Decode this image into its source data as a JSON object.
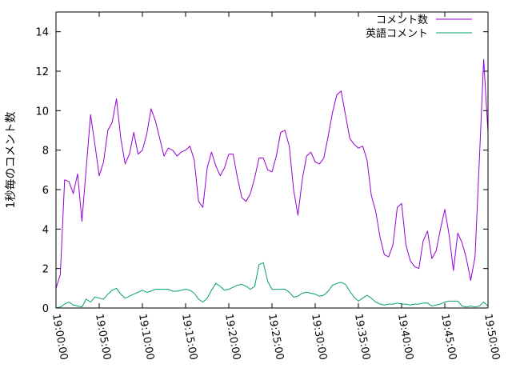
{
  "chart_data": {
    "type": "line",
    "title": "",
    "xlabel": "",
    "ylabel": "1秒毎のコメント数",
    "ylim": [
      0,
      15
    ],
    "yticks": [
      0,
      2,
      4,
      6,
      8,
      10,
      12,
      14
    ],
    "xticks": [
      "19:00:00",
      "19:05:00",
      "19:10:00",
      "19:15:00",
      "19:20:00",
      "19:25:00",
      "19:30:00",
      "19:35:00",
      "19:40:00",
      "19:45:00",
      "19:50:00"
    ],
    "xlim": [
      "19:00:00",
      "19:50:00"
    ],
    "grid": false,
    "legend_position": "top-right",
    "series": [
      {
        "name": "コメント数",
        "color": "#9400d3",
        "points": [
          [
            "19:00:00",
            1.0
          ],
          [
            "19:00:30",
            1.7
          ],
          [
            "19:01:00",
            6.5
          ],
          [
            "19:01:30",
            6.4
          ],
          [
            "19:02:00",
            5.8
          ],
          [
            "19:02:30",
            6.8
          ],
          [
            "19:03:00",
            4.4
          ],
          [
            "19:03:30",
            7.1
          ],
          [
            "19:04:00",
            9.8
          ],
          [
            "19:04:30",
            8.3
          ],
          [
            "19:05:00",
            6.7
          ],
          [
            "19:05:30",
            7.4
          ],
          [
            "19:06:00",
            9.0
          ],
          [
            "19:06:30",
            9.4
          ],
          [
            "19:07:00",
            10.6
          ],
          [
            "19:07:30",
            8.6
          ],
          [
            "19:08:00",
            7.3
          ],
          [
            "19:08:30",
            7.8
          ],
          [
            "19:09:00",
            8.9
          ],
          [
            "19:09:30",
            7.8
          ],
          [
            "19:10:00",
            8.0
          ],
          [
            "19:10:30",
            8.8
          ],
          [
            "19:11:00",
            10.1
          ],
          [
            "19:11:30",
            9.5
          ],
          [
            "19:12:00",
            8.6
          ],
          [
            "19:12:30",
            7.7
          ],
          [
            "19:13:00",
            8.1
          ],
          [
            "19:13:30",
            8.0
          ],
          [
            "19:14:00",
            7.7
          ],
          [
            "19:14:30",
            7.9
          ],
          [
            "19:15:00",
            8.0
          ],
          [
            "19:15:30",
            8.2
          ],
          [
            "19:16:00",
            7.5
          ],
          [
            "19:16:30",
            5.4
          ],
          [
            "19:17:00",
            5.1
          ],
          [
            "19:17:30",
            7.1
          ],
          [
            "19:18:00",
            7.9
          ],
          [
            "19:18:30",
            7.2
          ],
          [
            "19:19:00",
            6.7
          ],
          [
            "19:19:30",
            7.1
          ],
          [
            "19:20:00",
            7.8
          ],
          [
            "19:20:30",
            7.8
          ],
          [
            "19:21:00",
            6.6
          ],
          [
            "19:21:30",
            5.6
          ],
          [
            "19:22:00",
            5.4
          ],
          [
            "19:22:30",
            5.8
          ],
          [
            "19:23:00",
            6.6
          ],
          [
            "19:23:30",
            7.6
          ],
          [
            "19:24:00",
            7.6
          ],
          [
            "19:24:30",
            7.0
          ],
          [
            "19:25:00",
            6.9
          ],
          [
            "19:25:30",
            7.7
          ],
          [
            "19:26:00",
            8.9
          ],
          [
            "19:26:30",
            9.0
          ],
          [
            "19:27:00",
            8.2
          ],
          [
            "19:27:30",
            6.0
          ],
          [
            "19:28:00",
            4.7
          ],
          [
            "19:28:30",
            6.5
          ],
          [
            "19:29:00",
            7.7
          ],
          [
            "19:29:30",
            7.9
          ],
          [
            "19:30:00",
            7.4
          ],
          [
            "19:30:30",
            7.3
          ],
          [
            "19:31:00",
            7.6
          ],
          [
            "19:31:30",
            8.7
          ],
          [
            "19:32:00",
            9.9
          ],
          [
            "19:32:30",
            10.8
          ],
          [
            "19:33:00",
            11.0
          ],
          [
            "19:33:30",
            9.8
          ],
          [
            "19:34:00",
            8.6
          ],
          [
            "19:34:30",
            8.3
          ],
          [
            "19:35:00",
            8.1
          ],
          [
            "19:35:30",
            8.2
          ],
          [
            "19:36:00",
            7.5
          ],
          [
            "19:36:30",
            5.7
          ],
          [
            "19:37:00",
            4.9
          ],
          [
            "19:37:30",
            3.6
          ],
          [
            "19:38:00",
            2.7
          ],
          [
            "19:38:30",
            2.6
          ],
          [
            "19:39:00",
            3.2
          ],
          [
            "19:39:30",
            5.1
          ],
          [
            "19:40:00",
            5.3
          ],
          [
            "19:40:30",
            3.2
          ],
          [
            "19:41:00",
            2.4
          ],
          [
            "19:41:30",
            2.1
          ],
          [
            "19:42:00",
            2.0
          ],
          [
            "19:42:30",
            3.4
          ],
          [
            "19:43:00",
            3.9
          ],
          [
            "19:43:30",
            2.5
          ],
          [
            "19:44:00",
            2.9
          ],
          [
            "19:44:30",
            4.0
          ],
          [
            "19:45:00",
            5.0
          ],
          [
            "19:45:30",
            3.7
          ],
          [
            "19:46:00",
            1.9
          ],
          [
            "19:46:30",
            3.8
          ],
          [
            "19:47:00",
            3.3
          ],
          [
            "19:47:30",
            2.5
          ],
          [
            "19:48:00",
            1.4
          ],
          [
            "19:48:30",
            2.6
          ],
          [
            "19:49:00",
            7.5
          ],
          [
            "19:49:30",
            12.6
          ],
          [
            "19:50:00",
            8.9
          ]
        ]
      },
      {
        "name": "英語コメント",
        "color": "#009e73",
        "points": [
          [
            "19:00:00",
            0.0
          ],
          [
            "19:00:30",
            0.05
          ],
          [
            "19:01:00",
            0.2
          ],
          [
            "19:01:30",
            0.3
          ],
          [
            "19:02:00",
            0.15
          ],
          [
            "19:02:30",
            0.1
          ],
          [
            "19:03:00",
            0.05
          ],
          [
            "19:03:30",
            0.45
          ],
          [
            "19:04:00",
            0.3
          ],
          [
            "19:04:30",
            0.55
          ],
          [
            "19:05:00",
            0.5
          ],
          [
            "19:05:30",
            0.45
          ],
          [
            "19:06:00",
            0.7
          ],
          [
            "19:06:30",
            0.9
          ],
          [
            "19:07:00",
            1.0
          ],
          [
            "19:07:30",
            0.7
          ],
          [
            "19:08:00",
            0.5
          ],
          [
            "19:08:30",
            0.6
          ],
          [
            "19:09:00",
            0.7
          ],
          [
            "19:09:30",
            0.8
          ],
          [
            "19:10:00",
            0.9
          ],
          [
            "19:10:30",
            0.8
          ],
          [
            "19:11:00",
            0.85
          ],
          [
            "19:11:30",
            0.95
          ],
          [
            "19:12:00",
            0.95
          ],
          [
            "19:12:30",
            0.95
          ],
          [
            "19:13:00",
            0.95
          ],
          [
            "19:13:30",
            0.85
          ],
          [
            "19:14:00",
            0.85
          ],
          [
            "19:14:30",
            0.9
          ],
          [
            "19:15:00",
            0.95
          ],
          [
            "19:15:30",
            0.9
          ],
          [
            "19:16:00",
            0.75
          ],
          [
            "19:16:30",
            0.45
          ],
          [
            "19:17:00",
            0.3
          ],
          [
            "19:17:30",
            0.5
          ],
          [
            "19:18:00",
            0.9
          ],
          [
            "19:18:30",
            1.25
          ],
          [
            "19:19:00",
            1.1
          ],
          [
            "19:19:30",
            0.9
          ],
          [
            "19:20:00",
            0.95
          ],
          [
            "19:20:30",
            1.05
          ],
          [
            "19:21:00",
            1.15
          ],
          [
            "19:21:30",
            1.2
          ],
          [
            "19:22:00",
            1.1
          ],
          [
            "19:22:30",
            0.95
          ],
          [
            "19:23:00",
            1.1
          ],
          [
            "19:23:30",
            2.2
          ],
          [
            "19:24:00",
            2.3
          ],
          [
            "19:24:30",
            1.35
          ],
          [
            "19:25:00",
            0.95
          ],
          [
            "19:25:30",
            0.95
          ],
          [
            "19:26:00",
            0.95
          ],
          [
            "19:26:30",
            0.95
          ],
          [
            "19:27:00",
            0.8
          ],
          [
            "19:27:30",
            0.55
          ],
          [
            "19:28:00",
            0.6
          ],
          [
            "19:28:30",
            0.75
          ],
          [
            "19:29:00",
            0.8
          ],
          [
            "19:29:30",
            0.75
          ],
          [
            "19:30:00",
            0.7
          ],
          [
            "19:30:30",
            0.6
          ],
          [
            "19:31:00",
            0.65
          ],
          [
            "19:31:30",
            0.85
          ],
          [
            "19:32:00",
            1.15
          ],
          [
            "19:32:30",
            1.25
          ],
          [
            "19:33:00",
            1.3
          ],
          [
            "19:33:30",
            1.2
          ],
          [
            "19:34:00",
            0.85
          ],
          [
            "19:34:30",
            0.55
          ],
          [
            "19:35:00",
            0.35
          ],
          [
            "19:35:30",
            0.5
          ],
          [
            "19:36:00",
            0.65
          ],
          [
            "19:36:30",
            0.5
          ],
          [
            "19:37:00",
            0.3
          ],
          [
            "19:37:30",
            0.2
          ],
          [
            "19:38:00",
            0.15
          ],
          [
            "19:38:30",
            0.2
          ],
          [
            "19:39:00",
            0.2
          ],
          [
            "19:39:30",
            0.25
          ],
          [
            "19:40:00",
            0.2
          ],
          [
            "19:40:30",
            0.2
          ],
          [
            "19:41:00",
            0.15
          ],
          [
            "19:41:30",
            0.2
          ],
          [
            "19:42:00",
            0.2
          ],
          [
            "19:42:30",
            0.25
          ],
          [
            "19:43:00",
            0.25
          ],
          [
            "19:43:30",
            0.1
          ],
          [
            "19:44:00",
            0.15
          ],
          [
            "19:44:30",
            0.2
          ],
          [
            "19:45:00",
            0.3
          ],
          [
            "19:45:30",
            0.35
          ],
          [
            "19:46:00",
            0.35
          ],
          [
            "19:46:30",
            0.35
          ],
          [
            "19:47:00",
            0.1
          ],
          [
            "19:47:30",
            0.05
          ],
          [
            "19:48:00",
            0.1
          ],
          [
            "19:48:30",
            0.05
          ],
          [
            "19:49:00",
            0.1
          ],
          [
            "19:49:30",
            0.3
          ],
          [
            "19:50:00",
            0.1
          ]
        ]
      }
    ]
  }
}
